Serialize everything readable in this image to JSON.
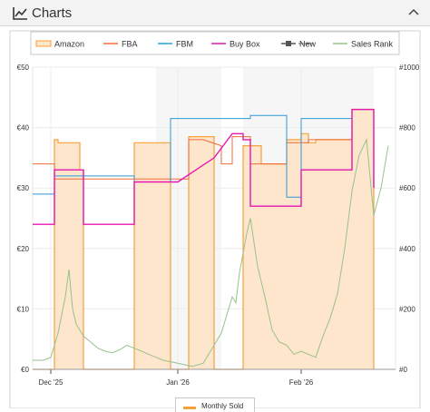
{
  "panel": {
    "title": "Charts",
    "icon": "line-chart-icon",
    "collapse_icon": "chevron-up-icon"
  },
  "bottom_legend": {
    "label": "Monthly Sold",
    "color": "#f7a13a"
  },
  "chart_data": {
    "type": "line",
    "legend": [
      {
        "name": "Amazon",
        "color": "#f7a13a",
        "style": "area"
      },
      {
        "name": "FBA",
        "color": "#f06a3b",
        "style": "line"
      },
      {
        "name": "FBM",
        "color": "#2b9ad6",
        "style": "line"
      },
      {
        "name": "Buy Box",
        "color": "#e617b1",
        "style": "line"
      },
      {
        "name": "New",
        "color": "#555555",
        "style": "line-marker",
        "disabled": true
      },
      {
        "name": "Sales Rank",
        "color": "#96c28c",
        "style": "line"
      }
    ],
    "legend_position": "top",
    "x_ticks": [
      "Dec '25",
      "Jan '26",
      "Feb '26"
    ],
    "x_tick_pos": [
      0.05,
      0.4,
      0.74
    ],
    "y_left": {
      "ticks": [
        "€0",
        "€10",
        "€20",
        "€30",
        "€40",
        "€50"
      ],
      "range": [
        0,
        50
      ],
      "unit": "€"
    },
    "y_right": {
      "ticks": [
        "#0",
        "#200",
        "#400",
        "#600",
        "#800",
        "#1000"
      ],
      "range": [
        0,
        1000
      ]
    },
    "grid": true,
    "shaded_ranges": [
      [
        0.34,
        0.52
      ],
      [
        0.58,
        0.94
      ]
    ],
    "series": {
      "amazon": [
        [
          0.0,
          0
        ],
        [
          0.0,
          0
        ],
        [
          0.06,
          0
        ],
        [
          0.06,
          38
        ],
        [
          0.07,
          38
        ],
        [
          0.07,
          37.5
        ],
        [
          0.13,
          37.5
        ],
        [
          0.13,
          33
        ],
        [
          0.14,
          33
        ],
        [
          0.14,
          0
        ],
        [
          0.28,
          0
        ],
        [
          0.28,
          37.5
        ],
        [
          0.38,
          37.5
        ],
        [
          0.38,
          0
        ],
        [
          0.43,
          0
        ],
        [
          0.43,
          38.5
        ],
        [
          0.5,
          38.5
        ],
        [
          0.5,
          0
        ],
        [
          0.58,
          0
        ],
        [
          0.58,
          37
        ],
        [
          0.63,
          37
        ],
        [
          0.63,
          34
        ],
        [
          0.7,
          34
        ],
        [
          0.7,
          38
        ],
        [
          0.74,
          38
        ],
        [
          0.74,
          39
        ],
        [
          0.76,
          39
        ],
        [
          0.76,
          37.5
        ],
        [
          0.78,
          37.5
        ],
        [
          0.78,
          38
        ],
        [
          0.88,
          38
        ],
        [
          0.88,
          43
        ],
        [
          0.94,
          43
        ],
        [
          0.94,
          0
        ]
      ],
      "fba": [
        [
          0.0,
          34
        ],
        [
          0.06,
          34
        ],
        [
          0.06,
          31.5
        ],
        [
          0.11,
          31.5
        ],
        [
          0.26,
          31.5
        ],
        [
          0.28,
          31.5
        ],
        [
          0.3,
          31.5
        ],
        [
          0.43,
          31.5
        ],
        [
          0.43,
          38
        ],
        [
          0.47,
          38
        ],
        [
          0.52,
          37
        ],
        [
          0.52,
          34
        ],
        [
          0.55,
          34
        ],
        [
          0.55,
          38.5
        ],
        [
          0.6,
          38.5
        ],
        [
          0.6,
          34
        ],
        [
          0.66,
          34
        ],
        [
          0.7,
          34
        ],
        [
          0.7,
          37.5
        ],
        [
          0.76,
          37.5
        ],
        [
          0.76,
          38
        ],
        [
          0.88,
          38
        ],
        [
          0.88,
          43
        ],
        [
          0.94,
          43
        ]
      ],
      "fbm": [
        [
          0.0,
          29
        ],
        [
          0.06,
          29
        ],
        [
          0.06,
          32
        ],
        [
          0.28,
          32
        ],
        [
          0.28,
          31
        ],
        [
          0.38,
          31
        ],
        [
          0.38,
          41.5
        ],
        [
          0.6,
          41.5
        ],
        [
          0.6,
          42
        ],
        [
          0.7,
          42
        ],
        [
          0.7,
          28.5
        ],
        [
          0.74,
          28.5
        ],
        [
          0.74,
          41.5
        ],
        [
          0.88,
          41.5
        ],
        [
          0.88,
          43
        ],
        [
          0.94,
          43
        ],
        [
          0.94,
          40
        ]
      ],
      "buybox": [
        [
          0.0,
          24
        ],
        [
          0.06,
          24
        ],
        [
          0.06,
          33
        ],
        [
          0.14,
          33
        ],
        [
          0.14,
          24
        ],
        [
          0.28,
          24
        ],
        [
          0.28,
          31
        ],
        [
          0.4,
          31
        ],
        [
          0.45,
          33
        ],
        [
          0.5,
          35
        ],
        [
          0.55,
          39
        ],
        [
          0.58,
          39
        ],
        [
          0.58,
          38
        ],
        [
          0.6,
          38
        ],
        [
          0.6,
          27
        ],
        [
          0.74,
          27
        ],
        [
          0.74,
          33
        ],
        [
          0.88,
          33
        ],
        [
          0.88,
          43
        ],
        [
          0.94,
          43
        ],
        [
          0.94,
          30
        ]
      ],
      "sales_rank": [
        [
          0.0,
          30
        ],
        [
          0.03,
          30
        ],
        [
          0.05,
          40
        ],
        [
          0.07,
          120
        ],
        [
          0.09,
          240
        ],
        [
          0.1,
          330
        ],
        [
          0.11,
          200
        ],
        [
          0.12,
          150
        ],
        [
          0.14,
          110
        ],
        [
          0.16,
          90
        ],
        [
          0.18,
          70
        ],
        [
          0.2,
          60
        ],
        [
          0.22,
          55
        ],
        [
          0.24,
          65
        ],
        [
          0.26,
          80
        ],
        [
          0.28,
          70
        ],
        [
          0.3,
          60
        ],
        [
          0.32,
          50
        ],
        [
          0.34,
          40
        ],
        [
          0.36,
          30
        ],
        [
          0.4,
          20
        ],
        [
          0.44,
          10
        ],
        [
          0.47,
          20
        ],
        [
          0.49,
          60
        ],
        [
          0.5,
          80
        ],
        [
          0.52,
          120
        ],
        [
          0.54,
          200
        ],
        [
          0.55,
          240
        ],
        [
          0.56,
          220
        ],
        [
          0.57,
          320
        ],
        [
          0.59,
          450
        ],
        [
          0.6,
          500
        ],
        [
          0.62,
          340
        ],
        [
          0.64,
          240
        ],
        [
          0.66,
          130
        ],
        [
          0.68,
          90
        ],
        [
          0.7,
          80
        ],
        [
          0.72,
          50
        ],
        [
          0.74,
          60
        ],
        [
          0.76,
          50
        ],
        [
          0.78,
          40
        ],
        [
          0.8,
          110
        ],
        [
          0.82,
          170
        ],
        [
          0.84,
          250
        ],
        [
          0.86,
          400
        ],
        [
          0.88,
          590
        ],
        [
          0.9,
          710
        ],
        [
          0.92,
          760
        ],
        [
          0.94,
          510
        ],
        [
          0.96,
          600
        ],
        [
          0.98,
          740
        ]
      ],
      "new": []
    }
  }
}
